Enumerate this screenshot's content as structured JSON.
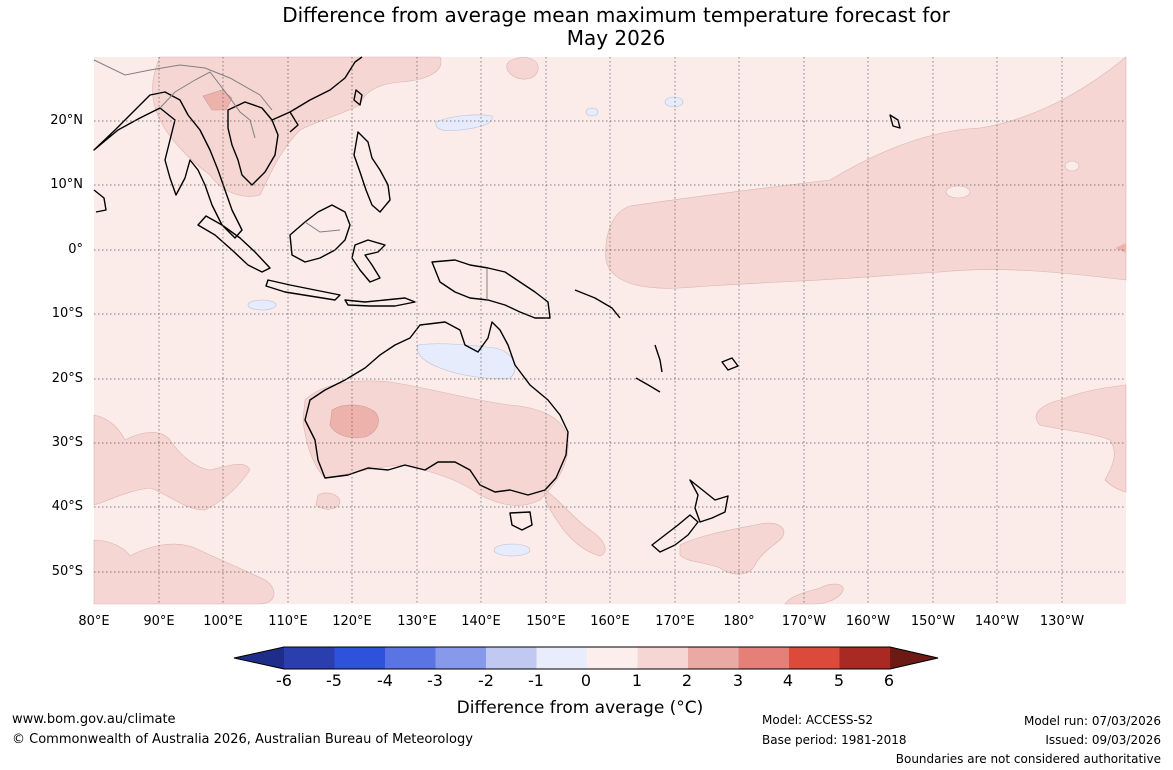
{
  "title": {
    "line1": "Difference from average mean maximum temperature forecast for",
    "line2": "May 2026"
  },
  "map": {
    "lat_labels": [
      "20°N",
      "10°N",
      "0°",
      "10°S",
      "20°S",
      "30°S",
      "40°S",
      "50°S"
    ],
    "lon_labels": [
      "80°E",
      "90°E",
      "100°E",
      "110°E",
      "120°E",
      "130°E",
      "140°E",
      "150°E",
      "160°E",
      "170°E",
      "180°",
      "170°W",
      "160°W",
      "150°W",
      "140°W",
      "130°W"
    ],
    "background_color": "#fbecea",
    "anomaly_color_1_2": "#f5d6d3",
    "anomaly_color_2_3": "#eeb2ad",
    "anomaly_color_neg": "#e6ecfb"
  },
  "colorbar": {
    "tick_labels": [
      "-6",
      "-5",
      "-4",
      "-3",
      "-2",
      "-1",
      "0",
      "1",
      "2",
      "3",
      "4",
      "5",
      "6"
    ],
    "colors": [
      "#1f2d8a",
      "#2b3eae",
      "#2e52dc",
      "#5a74e3",
      "#8799ea",
      "#c1c9f3",
      "#e9ecfb",
      "#fbeeed",
      "#f5d6d3",
      "#eba9a3",
      "#e58079",
      "#dc4a3c",
      "#a82a22",
      "#6e1a14"
    ],
    "title": "Difference from average (°C)"
  },
  "footer": {
    "website": "www.bom.gov.au/climate",
    "copyright": "© Commonwealth of Australia 2026, Australian Bureau of Meteorology",
    "model": "Model: ACCESS-S2",
    "base_period": "Base period: 1981-2018",
    "model_run": "Model run: 07/03/2026",
    "issued": "Issued: 09/03/2026",
    "disclaimer": "Boundaries are not considered authoritative"
  }
}
